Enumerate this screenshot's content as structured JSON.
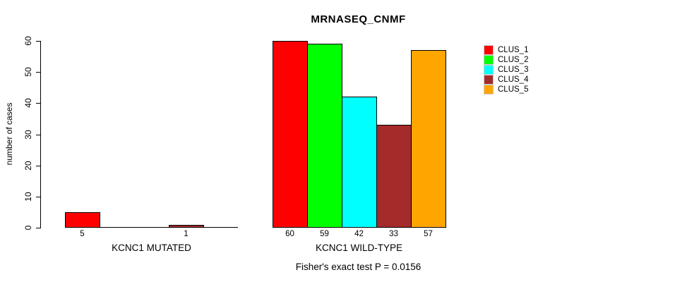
{
  "chart_data": {
    "type": "bar",
    "title": "MRNASEQ_CNMF",
    "ylabel": "number of cases",
    "subtitle": "Fisher's exact test P = 0.0156",
    "ylim": [
      0,
      60
    ],
    "yticks": [
      0,
      10,
      20,
      30,
      40,
      50,
      60
    ],
    "grid": false,
    "legend_position": "right",
    "series_colors": [
      "#ff0000",
      "#00ff00",
      "#00ffff",
      "#a52a2a",
      "#ffa500"
    ],
    "series_names": [
      "CLUS_1",
      "CLUS_2",
      "CLUS_3",
      "CLUS_4",
      "CLUS_5"
    ],
    "groups": [
      {
        "label": "KCNC1 MUTATED",
        "values": [
          5,
          0,
          0,
          1,
          0
        ],
        "visible_value_labels": [
          "5",
          "",
          "",
          "1",
          ""
        ]
      },
      {
        "label": "KCNC1 WILD-TYPE",
        "values": [
          60,
          59,
          42,
          33,
          57
        ],
        "visible_value_labels": [
          "60",
          "59",
          "42",
          "33",
          "57"
        ]
      }
    ],
    "legend": [
      {
        "label": "CLUS_1",
        "color": "#ff0000"
      },
      {
        "label": "CLUS_2",
        "color": "#00ff00"
      },
      {
        "label": "CLUS_3",
        "color": "#00ffff"
      },
      {
        "label": "CLUS_4",
        "color": "#a52a2a"
      },
      {
        "label": "CLUS_5",
        "color": "#ffa500"
      }
    ]
  }
}
